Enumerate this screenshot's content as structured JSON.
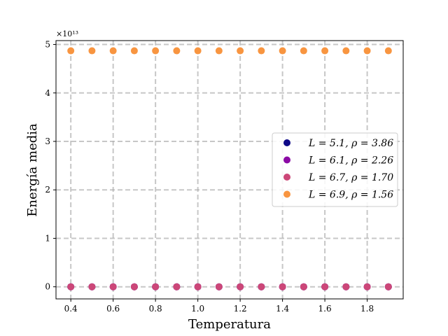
{
  "chart_data": {
    "type": "scatter",
    "xlabel": "Temperatura",
    "ylabel": "Energía media",
    "y_offset_label": "×10¹³",
    "xlim": [
      0.33,
      1.97
    ],
    "ylim": [
      -0.25,
      5.08
    ],
    "y_scale_factor": 10000000000000.0,
    "xticks": [
      0.4,
      0.6,
      0.8,
      1.0,
      1.2,
      1.4,
      1.6,
      1.8
    ],
    "xtick_labels": [
      "0.4",
      "0.6",
      "0.8",
      "1.0",
      "1.2",
      "1.4",
      "1.6",
      "1.8"
    ],
    "yticks": [
      0,
      1,
      2,
      3,
      4,
      5
    ],
    "ytick_labels": [
      "0",
      "1",
      "2",
      "3",
      "4",
      "5"
    ],
    "grid": true,
    "legend_position": "center-right",
    "x": [
      0.4,
      0.5,
      0.6,
      0.7,
      0.8,
      0.9,
      1.0,
      1.1,
      1.2,
      1.3,
      1.4,
      1.5,
      1.6,
      1.7,
      1.8,
      1.9
    ],
    "series": [
      {
        "name": "L = 5.1, ρ = 3.86",
        "color": "#0d0887",
        "values": [
          0,
          0,
          0,
          0,
          0,
          0,
          0,
          0,
          0,
          0,
          0,
          0,
          0,
          0,
          0,
          0
        ]
      },
      {
        "name": "L = 6.1, ρ = 2.26",
        "color": "#8b0aa5",
        "values": [
          0,
          0,
          0,
          0,
          0,
          0,
          0,
          0,
          0,
          0,
          0,
          0,
          0,
          0,
          0,
          0
        ]
      },
      {
        "name": "L = 6.7, ρ = 1.70",
        "color": "#cc4778",
        "values": [
          0,
          0,
          0,
          0,
          0,
          0,
          0,
          0,
          0,
          0,
          0,
          0,
          0,
          0,
          0,
          0
        ]
      },
      {
        "name": "L = 6.9, ρ = 1.56",
        "color": "#f89540",
        "values": [
          4.87,
          4.87,
          4.87,
          4.87,
          4.87,
          4.87,
          4.87,
          4.87,
          4.87,
          4.87,
          4.87,
          4.87,
          4.87,
          4.87,
          4.87,
          4.87
        ]
      }
    ]
  }
}
